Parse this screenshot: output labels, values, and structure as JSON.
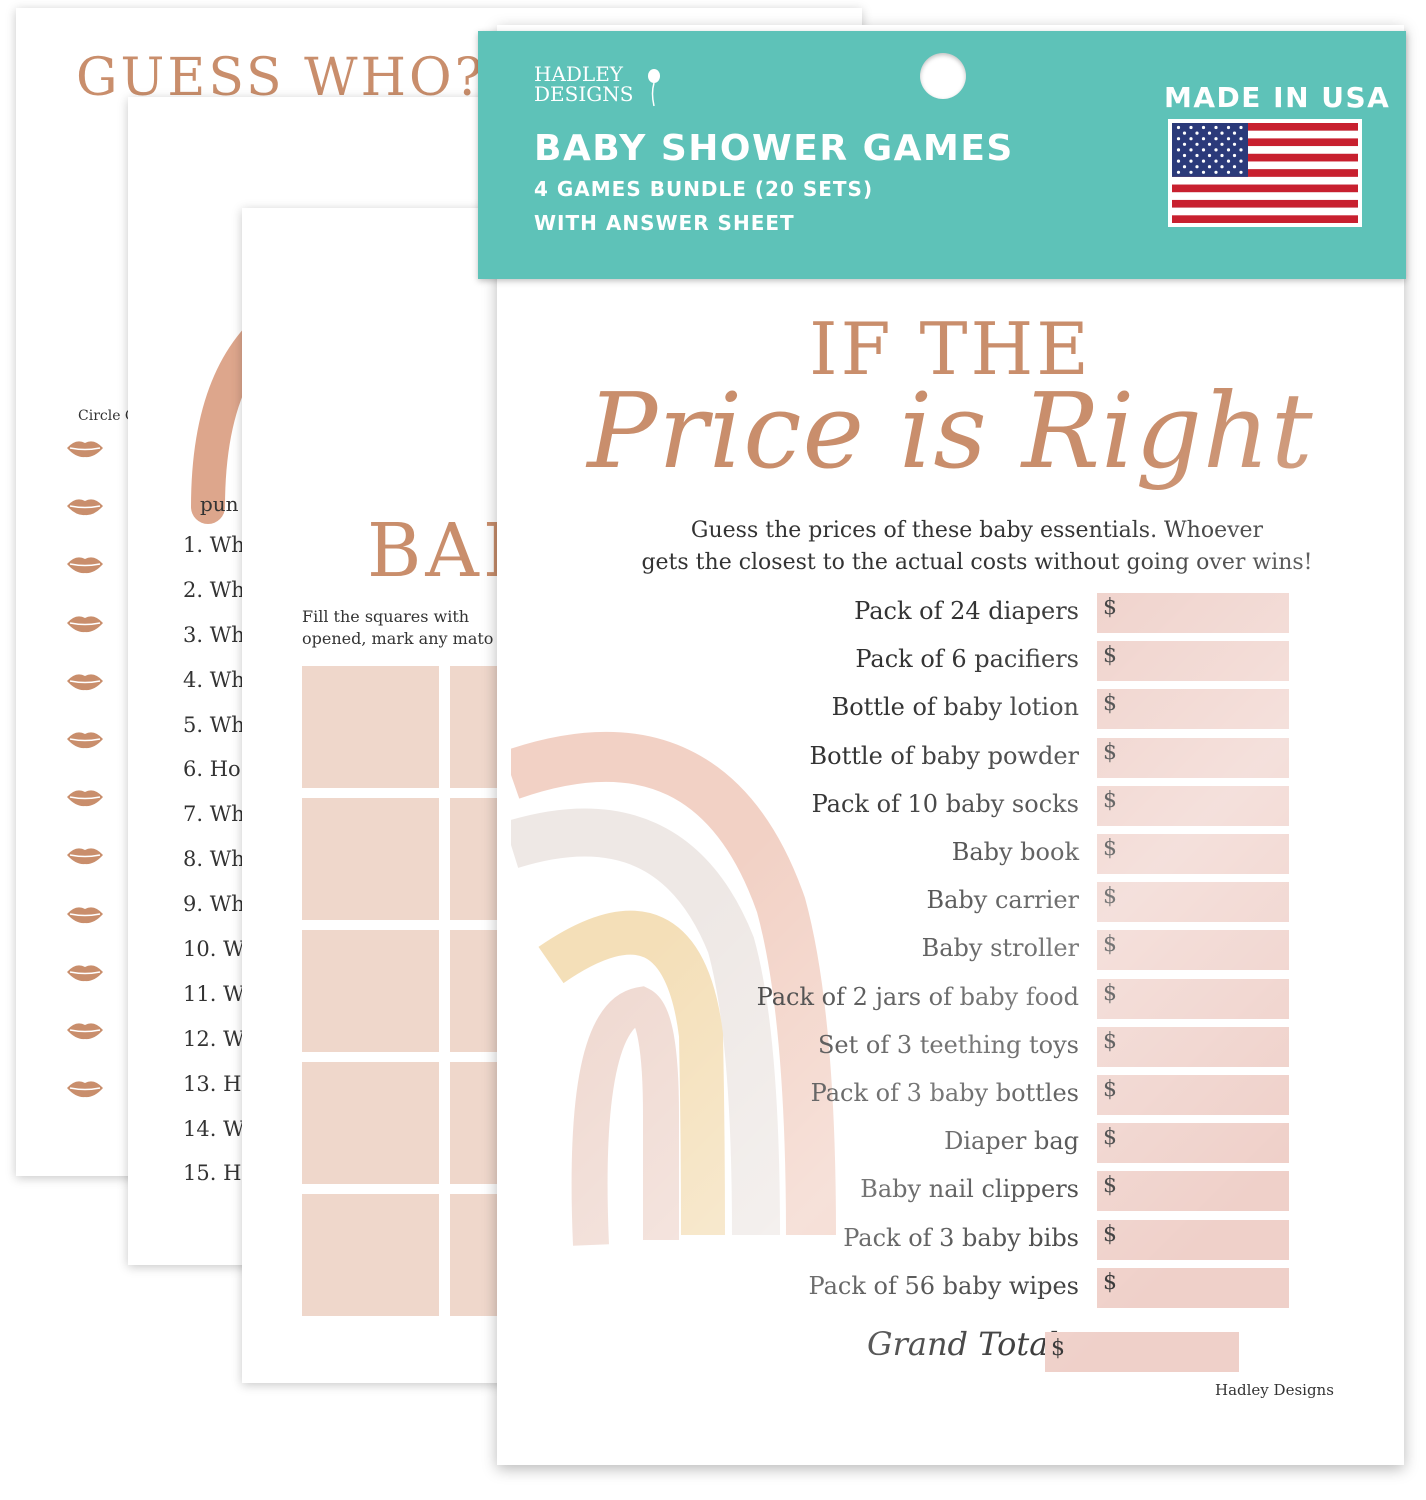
{
  "sheet_guess_who": {
    "title": "GUESS WHO?",
    "circle_label": "Circle C",
    "lip_count": 12
  },
  "sheet_questions": {
    "intro": "pun",
    "questions": [
      "1. Wh",
      "2. Wh",
      "3. Wh",
      "4. Wh",
      "5. Wh",
      "6. Ho",
      "7. Wh",
      "8. Wh",
      "9. Wh",
      "10. W",
      "11. W",
      "12. W",
      "13. H",
      "14. W",
      "15. H"
    ]
  },
  "sheet_bingo": {
    "title": "BAI",
    "instructions_line1": "Fill the squares with",
    "instructions_line2": "opened, mark any mato"
  },
  "header": {
    "brand_line1": "HADLEY",
    "brand_line2": "DESIGNS",
    "title": "BABY SHOWER GAMES",
    "subtitle1": "4 GAMES BUNDLE (20 SETS)",
    "subtitle2": "WITH ANSWER SHEET",
    "made_in": "MADE IN USA",
    "accent_color": "#5ec2b8"
  },
  "game": {
    "title_top": "IF THE",
    "title_script": "Price is Right",
    "intro_line1": "Guess the prices of these baby essentials. Whoever",
    "intro_line2": "gets the closest to the actual costs without going over wins!",
    "currency": "$",
    "items": [
      "Pack of 24 diapers",
      "Pack of 6 pacifiers",
      "Bottle of baby lotion",
      "Bottle of baby powder",
      "Pack of 10 baby socks",
      "Baby book",
      "Baby carrier",
      "Baby stroller",
      "Pack of 2 jars of baby food",
      "Set of 3 teething toys",
      "Pack of 3 baby bottles",
      "Diaper bag",
      "Baby nail clippers",
      "Pack of 3 baby bibs",
      "Pack of 56 baby wipes"
    ],
    "grand_total_label": "Grand Total:",
    "footer_brand": "Hadley Designs",
    "title_color": "#c98e6c",
    "box_color": "#efd0c9"
  }
}
